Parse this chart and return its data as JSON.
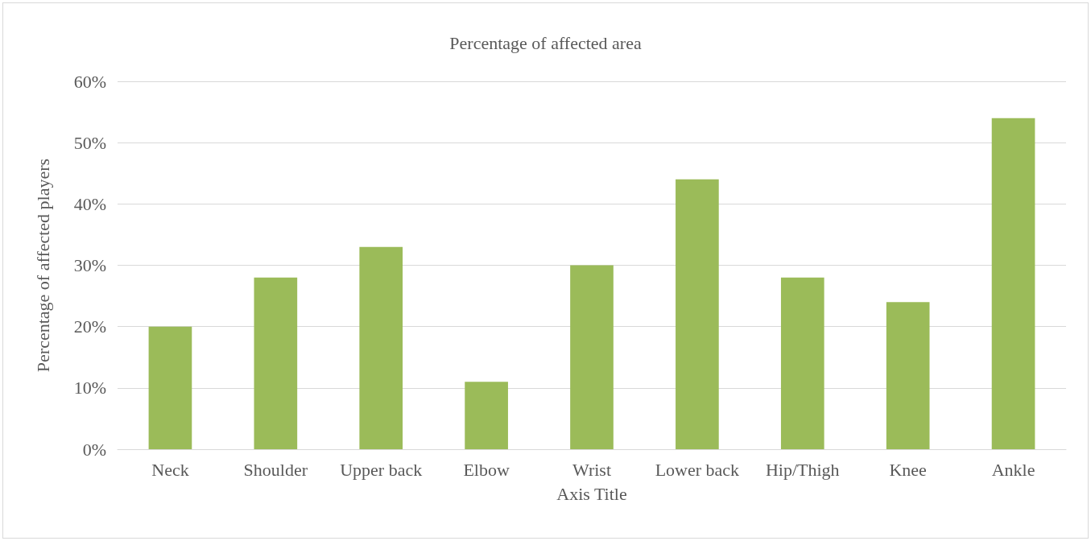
{
  "chart_data": {
    "type": "bar",
    "title": "Percentage of affected area",
    "xlabel": "Axis Title",
    "ylabel": "Percentage of affected players",
    "categories": [
      "Neck",
      "Shoulder",
      "Upper back",
      "Elbow",
      "Wrist",
      "Lower back",
      "Hip/Thigh",
      "Knee",
      "Ankle"
    ],
    "values": [
      20,
      28,
      33,
      11,
      30,
      44,
      28,
      24,
      54
    ],
    "color": "#9bbb59",
    "ylim": [
      0,
      60
    ],
    "yticks": [
      {
        "value": 0,
        "label": "0%"
      },
      {
        "value": 10,
        "label": "10%"
      },
      {
        "value": 20,
        "label": "20%"
      },
      {
        "value": 30,
        "label": "30%"
      },
      {
        "value": 40,
        "label": "40%"
      },
      {
        "value": 50,
        "label": "50%"
      },
      {
        "value": 60,
        "label": "60%"
      }
    ],
    "grid": "y"
  }
}
